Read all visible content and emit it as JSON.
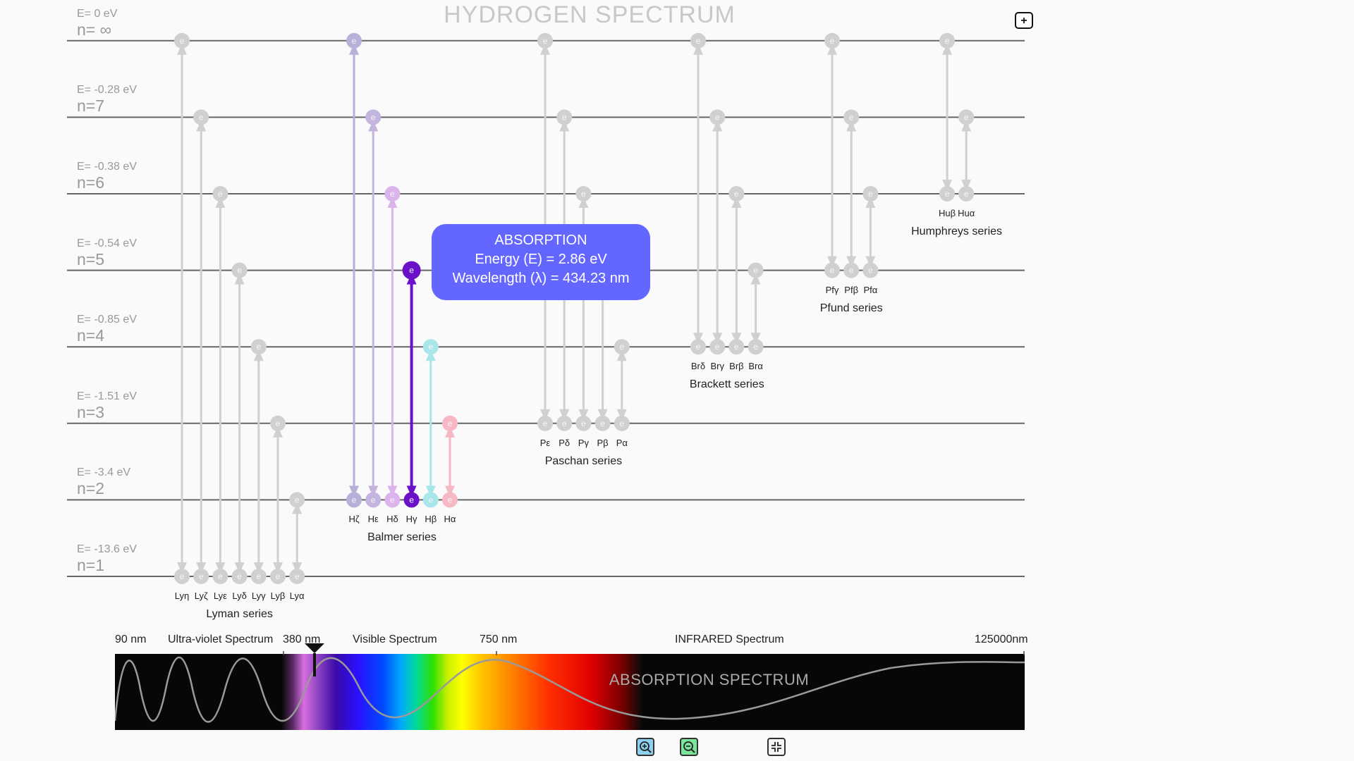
{
  "title": "HYDROGEN SPECTRUM",
  "expand_button": "+",
  "levels": [
    {
      "n": 1,
      "label": "n=1",
      "energy": "E= -13.6 eV"
    },
    {
      "n": 2,
      "label": "n=2",
      "energy": "E= -3.4 eV"
    },
    {
      "n": 3,
      "label": "n=3",
      "energy": "E= -1.51 eV"
    },
    {
      "n": 4,
      "label": "n=4",
      "energy": "E= -0.85 eV"
    },
    {
      "n": 5,
      "label": "n=5",
      "energy": "E= -0.54 eV"
    },
    {
      "n": 6,
      "label": "n=6",
      "energy": "E= -0.38 eV"
    },
    {
      "n": 7,
      "label": "n=7",
      "energy": "E= -0.28 eV"
    },
    {
      "n": 8,
      "label": "n= ∞",
      "energy": "E= 0 eV"
    }
  ],
  "series": [
    {
      "name": "Lyman series",
      "lower": 1,
      "transitions": [
        {
          "label": "Lyη",
          "upper": 8
        },
        {
          "label": "Lyζ",
          "upper": 7
        },
        {
          "label": "Lyε",
          "upper": 6
        },
        {
          "label": "Lyδ",
          "upper": 5
        },
        {
          "label": "Lyγ",
          "upper": 4
        },
        {
          "label": "Lyβ",
          "upper": 3
        },
        {
          "label": "Lyα",
          "upper": 2
        }
      ]
    },
    {
      "name": "Balmer series",
      "lower": 2,
      "transitions": [
        {
          "label": "Hζ",
          "upper": 8,
          "color": "#b8b0d8"
        },
        {
          "label": "Hε",
          "upper": 7,
          "color": "#c4b4e0"
        },
        {
          "label": "Hδ",
          "upper": 6,
          "color": "#dcb4ec"
        },
        {
          "label": "Hγ",
          "upper": 5,
          "color": "#6a10c8",
          "active": true
        },
        {
          "label": "Hβ",
          "upper": 4,
          "color": "#a8e6ea"
        },
        {
          "label": "Hα",
          "upper": 3,
          "color": "#f6b8c4"
        }
      ]
    },
    {
      "name": "Paschan series",
      "lower": 3,
      "transitions": [
        {
          "label": "Pε",
          "upper": 8
        },
        {
          "label": "Pδ",
          "upper": 7
        },
        {
          "label": "Pγ",
          "upper": 6
        },
        {
          "label": "Pβ",
          "upper": 5
        },
        {
          "label": "Pα",
          "upper": 4
        }
      ]
    },
    {
      "name": "Brackett series",
      "lower": 4,
      "transitions": [
        {
          "label": "Brδ",
          "upper": 8
        },
        {
          "label": "Brγ",
          "upper": 7
        },
        {
          "label": "Brβ",
          "upper": 6
        },
        {
          "label": "Brα",
          "upper": 5
        }
      ]
    },
    {
      "name": "Pfund series",
      "lower": 5,
      "transitions": [
        {
          "label": "Pfγ",
          "upper": 8
        },
        {
          "label": "Pfβ",
          "upper": 7
        },
        {
          "label": "Pfα",
          "upper": 6
        }
      ]
    },
    {
      "name": "Humphreys series",
      "lower": 6,
      "transitions": [
        {
          "label": "Huβ",
          "upper": 8
        },
        {
          "label": "Huα",
          "upper": 7
        }
      ]
    }
  ],
  "electron_symbol": "e",
  "tooltip": {
    "title": "ABSORPTION",
    "energy": "Energy (E) = 2.86 eV",
    "wavelength": "Wavelength (λ) = 434.23 nm"
  },
  "spectrum": {
    "title": "ABSORPTION SPECTRUM",
    "labels": {
      "uv_start": "90 nm",
      "uv": "Ultra-violet Spectrum",
      "visible_start": "380 nm",
      "visible": "Visible Spectrum",
      "visible_end": "750 nm",
      "infrared": "INFRARED Spectrum",
      "ir_end": "125000nm"
    },
    "marker_wavelength_nm": 434.23
  },
  "controls": {
    "zoom_in": "zoom-in-icon",
    "zoom_out": "zoom-out-icon",
    "fit": "fit-screen-icon"
  },
  "colors": {
    "inactive": "#d0d0d0",
    "tooltip_bg": "#6366ff",
    "active": "#6a10c8"
  }
}
